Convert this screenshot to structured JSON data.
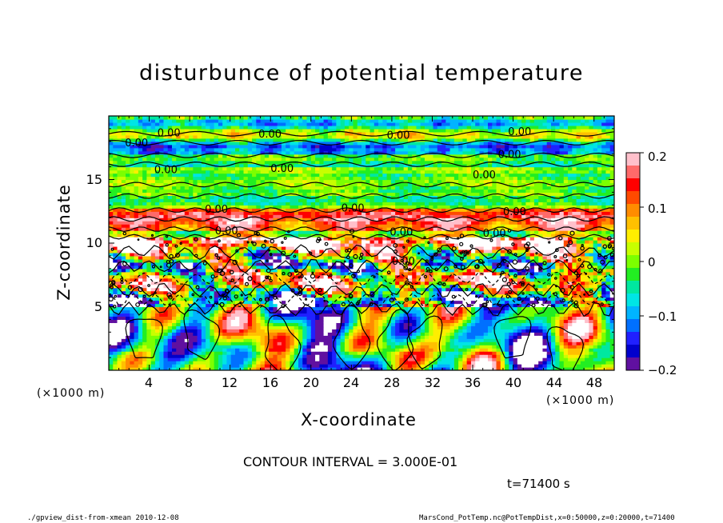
{
  "chart_data": {
    "type": "heatmap",
    "title": "disturbunce of potential temperature",
    "xlabel": "X-coordinate",
    "ylabel": "Z-coordinate",
    "x_unit": "(×1000 m)",
    "x_unit_right": "(×1000 m)",
    "xlim": [
      0,
      50
    ],
    "ylim": [
      0,
      20
    ],
    "x_ticks": [
      "4",
      "8",
      "12",
      "16",
      "20",
      "24",
      "28",
      "32",
      "36",
      "40",
      "44",
      "48"
    ],
    "y_ticks": [
      "5",
      "10",
      "15"
    ],
    "colorbar": {
      "ticks": [
        "0.2",
        "0.1",
        "0",
        "−0.1",
        "−0.2"
      ],
      "range": [
        -0.2,
        0.2
      ],
      "colors": [
        "#ffc0cb",
        "#ff6a6a",
        "#ff0000",
        "#ff4a00",
        "#ff8c00",
        "#ffc000",
        "#ffee00",
        "#c8ff00",
        "#7cff00",
        "#22ee22",
        "#00e8a0",
        "#00e5e5",
        "#00b4ff",
        "#0070ff",
        "#2020ff",
        "#0000cc",
        "#6010a0"
      ]
    },
    "contour_interval": "CONTOUR INTERVAL = 3.000E-01",
    "contour_labels": [
      "0.00",
      "0.00",
      "0.00",
      "0.00",
      "0.00",
      "0.00",
      "0.00",
      "0.00",
      "0.00",
      "0.00",
      "0.00",
      "0.00",
      "0.00",
      "0.00",
      "0.00",
      "0.00"
    ],
    "time": "t=71400 s"
  },
  "footer": {
    "left": "./gpview_dist-from-xmean  2010-12-08",
    "right": "MarsCond_PotTemp.nc@PotTempDist,x=0:50000,z=0:20000,t=71400"
  }
}
